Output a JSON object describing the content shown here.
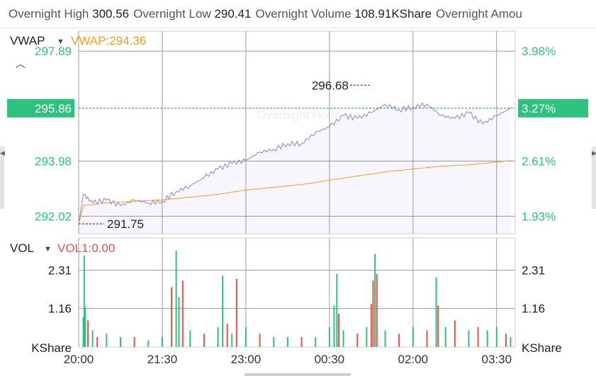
{
  "stats": {
    "items": [
      {
        "label": "Overnight High",
        "value": "300.56"
      },
      {
        "label": "Overnight Low",
        "value": "290.41"
      },
      {
        "label": "Overnight Volume",
        "value": "108.91KShare"
      },
      {
        "label": "Overnight Amou",
        "value": ""
      }
    ]
  },
  "main_panel": {
    "indicator": "VWAP",
    "indicator_value": "VWAP:294.36",
    "watermark": "Overnight Hour",
    "current_price": "295.86",
    "current_pct": "3.27%",
    "high_annotation": "296.68",
    "low_annotation": "291.75"
  },
  "vol_panel": {
    "indicator": "VOL",
    "indicator_value": "VOL1:0.00",
    "unit_left": "KShare",
    "unit_right": "KShare"
  },
  "colors": {
    "price_line": "#8a7fe0",
    "vwap_line": "#f0a020",
    "up": "#2ec27e",
    "down": "#e5534b",
    "current_marker": "#2ec27e"
  },
  "chart_data": [
    {
      "type": "line",
      "title": "",
      "x_ticks": [
        "20:00",
        "21:30",
        "23:00",
        "00:30",
        "02:00",
        "03:30"
      ],
      "y_ticks_left": [
        "297.89",
        "295.86",
        "293.98",
        "292.02"
      ],
      "y_ticks_right": [
        "3.98%",
        "3.27%",
        "2.61%",
        "1.93%"
      ],
      "ylim": [
        291.4,
        298.6
      ],
      "series": [
        {
          "name": "price",
          "x": [
            "20:00",
            "20:05",
            "20:15",
            "20:30",
            "20:45",
            "21:00",
            "21:15",
            "21:30",
            "21:45",
            "22:00",
            "22:15",
            "22:30",
            "22:45",
            "23:00",
            "23:15",
            "23:30",
            "23:45",
            "00:00",
            "00:15",
            "00:30",
            "00:45",
            "01:00",
            "01:15",
            "01:30",
            "01:45",
            "02:00",
            "02:15",
            "02:30",
            "02:45",
            "03:00",
            "03:15",
            "03:30",
            "03:45"
          ],
          "values": [
            291.75,
            292.8,
            292.5,
            292.6,
            292.4,
            292.6,
            292.5,
            292.55,
            292.9,
            293.1,
            293.4,
            293.7,
            293.9,
            294.0,
            294.3,
            294.4,
            294.6,
            294.6,
            295.0,
            295.2,
            295.6,
            295.5,
            295.7,
            296.0,
            295.8,
            295.9,
            296.0,
            295.6,
            295.5,
            295.7,
            295.3,
            295.6,
            295.86
          ]
        },
        {
          "name": "VWAP",
          "x": [
            "20:00",
            "20:05",
            "20:30",
            "21:00",
            "21:30",
            "22:00",
            "22:30",
            "23:00",
            "23:30",
            "00:00",
            "00:30",
            "01:00",
            "01:30",
            "02:00",
            "02:30",
            "03:00",
            "03:30",
            "03:45"
          ],
          "values": [
            291.75,
            292.4,
            292.5,
            292.55,
            292.6,
            292.7,
            292.8,
            292.95,
            293.05,
            293.15,
            293.3,
            293.45,
            293.6,
            293.7,
            293.8,
            293.85,
            293.95,
            294.0
          ]
        }
      ]
    },
    {
      "type": "bar",
      "title": "",
      "y_ticks": [
        "2.31",
        "1.16"
      ],
      "ylim": [
        0,
        2.9
      ],
      "bars": [
        {
          "t": "20:05",
          "v": 0.9,
          "dir": "up"
        },
        {
          "t": "20:06",
          "v": 2.75,
          "dir": "up"
        },
        {
          "t": "20:07",
          "v": 1.2,
          "dir": "up"
        },
        {
          "t": "20:10",
          "v": 0.8,
          "dir": "down"
        },
        {
          "t": "20:15",
          "v": 0.5,
          "dir": "up"
        },
        {
          "t": "20:20",
          "v": 0.3,
          "dir": "down"
        },
        {
          "t": "20:30",
          "v": 0.4,
          "dir": "up"
        },
        {
          "t": "20:45",
          "v": 0.3,
          "dir": "up"
        },
        {
          "t": "21:00",
          "v": 0.3,
          "dir": "down"
        },
        {
          "t": "21:15",
          "v": 0.2,
          "dir": "up"
        },
        {
          "t": "21:30",
          "v": 0.3,
          "dir": "up"
        },
        {
          "t": "21:40",
          "v": 1.8,
          "dir": "down"
        },
        {
          "t": "21:45",
          "v": 2.9,
          "dir": "up"
        },
        {
          "t": "21:48",
          "v": 1.5,
          "dir": "up"
        },
        {
          "t": "21:52",
          "v": 2.0,
          "dir": "down"
        },
        {
          "t": "22:00",
          "v": 0.5,
          "dir": "up"
        },
        {
          "t": "22:15",
          "v": 0.4,
          "dir": "down"
        },
        {
          "t": "22:30",
          "v": 0.6,
          "dir": "up"
        },
        {
          "t": "22:35",
          "v": 2.15,
          "dir": "up"
        },
        {
          "t": "22:40",
          "v": 0.7,
          "dir": "down"
        },
        {
          "t": "22:45",
          "v": 0.4,
          "dir": "up"
        },
        {
          "t": "22:50",
          "v": 2.05,
          "dir": "down"
        },
        {
          "t": "23:00",
          "v": 0.6,
          "dir": "up"
        },
        {
          "t": "23:15",
          "v": 0.4,
          "dir": "down"
        },
        {
          "t": "23:30",
          "v": 0.3,
          "dir": "up"
        },
        {
          "t": "23:45",
          "v": 0.3,
          "dir": "up"
        },
        {
          "t": "00:00",
          "v": 0.3,
          "dir": "down"
        },
        {
          "t": "00:15",
          "v": 0.3,
          "dir": "up"
        },
        {
          "t": "00:30",
          "v": 0.6,
          "dir": "up"
        },
        {
          "t": "00:35",
          "v": 1.25,
          "dir": "up"
        },
        {
          "t": "00:38",
          "v": 2.2,
          "dir": "up"
        },
        {
          "t": "00:40",
          "v": 1.0,
          "dir": "down"
        },
        {
          "t": "00:45",
          "v": 0.5,
          "dir": "up"
        },
        {
          "t": "01:00",
          "v": 0.4,
          "dir": "down"
        },
        {
          "t": "01:10",
          "v": 0.6,
          "dir": "up"
        },
        {
          "t": "01:15",
          "v": 1.3,
          "dir": "down"
        },
        {
          "t": "01:17",
          "v": 2.0,
          "dir": "down"
        },
        {
          "t": "01:19",
          "v": 2.8,
          "dir": "up"
        },
        {
          "t": "01:21",
          "v": 2.2,
          "dir": "down"
        },
        {
          "t": "01:30",
          "v": 0.5,
          "dir": "up"
        },
        {
          "t": "01:45",
          "v": 0.4,
          "dir": "down"
        },
        {
          "t": "02:00",
          "v": 0.6,
          "dir": "up"
        },
        {
          "t": "02:15",
          "v": 0.5,
          "dir": "down"
        },
        {
          "t": "02:25",
          "v": 2.1,
          "dir": "up"
        },
        {
          "t": "02:27",
          "v": 1.25,
          "dir": "down"
        },
        {
          "t": "02:35",
          "v": 0.6,
          "dir": "up"
        },
        {
          "t": "02:45",
          "v": 0.8,
          "dir": "down"
        },
        {
          "t": "03:00",
          "v": 0.5,
          "dir": "up"
        },
        {
          "t": "03:10",
          "v": 0.6,
          "dir": "down"
        },
        {
          "t": "03:20",
          "v": 0.5,
          "dir": "up"
        },
        {
          "t": "03:30",
          "v": 0.6,
          "dir": "up"
        },
        {
          "t": "03:40",
          "v": 0.4,
          "dir": "down"
        },
        {
          "t": "03:45",
          "v": 0.3,
          "dir": "up"
        }
      ]
    }
  ]
}
